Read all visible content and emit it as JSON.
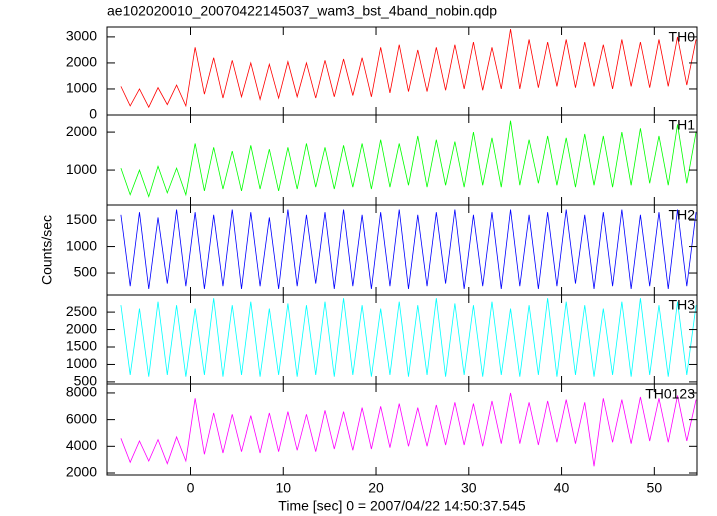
{
  "title": "ae102020010_20070422145037_wam3_bst_4band_nobin.qdp",
  "xlabel": "Time [sec] 0 = 2007/04/22 14:50:37.545",
  "ylabel": "Counts/sec",
  "xlim": [
    -9,
    54.6
  ],
  "xticks": [
    0,
    10,
    20,
    30,
    40,
    50
  ],
  "x": [
    -7.5,
    -6.5,
    -5.5,
    -4.5,
    -3.5,
    -2.5,
    -1.5,
    -0.5,
    0.5,
    1.5,
    2.5,
    3.5,
    4.5,
    5.5,
    6.5,
    7.5,
    8.5,
    9.5,
    10.5,
    11.5,
    12.5,
    13.5,
    14.5,
    15.5,
    16.5,
    17.5,
    18.5,
    19.5,
    20.5,
    21.5,
    22.5,
    23.5,
    24.5,
    25.5,
    26.5,
    27.5,
    28.5,
    29.5,
    30.5,
    31.5,
    32.5,
    33.5,
    34.5,
    35.5,
    36.5,
    37.5,
    38.5,
    39.5,
    40.5,
    41.5,
    42.5,
    43.5,
    44.5,
    45.5,
    46.5,
    47.5,
    48.5,
    49.5,
    50.5,
    51.5,
    52.5,
    53.5,
    54.5
  ],
  "chart_data": [
    {
      "type": "line",
      "ylim": [
        0,
        3380
      ],
      "yticks": [
        0,
        1000,
        2000,
        3000
      ],
      "series": [
        {
          "name": "TH0",
          "color": "#ff0000",
          "values": [
            1100,
            350,
            1000,
            300,
            1050,
            400,
            1150,
            350,
            2600,
            800,
            2200,
            650,
            2100,
            700,
            2000,
            600,
            1950,
            650,
            2050,
            700,
            2000,
            650,
            2100,
            700,
            2150,
            750,
            2200,
            700,
            2600,
            850,
            2700,
            900,
            2500,
            900,
            2600,
            950,
            2700,
            1000,
            2800,
            950,
            2600,
            1000,
            3300,
            1000,
            2900,
            1050,
            2800,
            1100,
            2900,
            1050,
            2800,
            1100,
            2700,
            1000,
            2900,
            1100,
            2800,
            1050,
            2900,
            1100,
            3000,
            1150,
            2900
          ]
        }
      ]
    },
    {
      "type": "line",
      "ylim": [
        80,
        2450
      ],
      "yticks": [
        1000,
        2000
      ],
      "series": [
        {
          "name": "TH1",
          "color": "#00ff00",
          "values": [
            1050,
            350,
            1000,
            300,
            1100,
            400,
            1050,
            350,
            1700,
            450,
            1600,
            500,
            1500,
            450,
            1650,
            500,
            1550,
            450,
            1600,
            500,
            1700,
            550,
            1600,
            500,
            1650,
            550,
            1700,
            500,
            1800,
            550,
            1700,
            600,
            1900,
            550,
            1800,
            600,
            1750,
            550,
            2000,
            600,
            1850,
            550,
            2300,
            600,
            1800,
            650,
            1900,
            600,
            1850,
            550,
            1950,
            600,
            1900,
            550,
            2000,
            600,
            2100,
            650,
            1900,
            600,
            2200,
            650,
            2000
          ]
        }
      ]
    },
    {
      "type": "line",
      "ylim": [
        85,
        1785
      ],
      "yticks": [
        500,
        1000,
        1500
      ],
      "series": [
        {
          "name": "TH2",
          "color": "#0000ff",
          "values": [
            1600,
            250,
            1650,
            200,
            1550,
            300,
            1700,
            250,
            1650,
            200,
            1600,
            250,
            1700,
            200,
            1650,
            250,
            1550,
            200,
            1700,
            250,
            1600,
            300,
            1650,
            200,
            1700,
            250,
            1600,
            200,
            1650,
            250,
            1700,
            200,
            1600,
            250,
            1650,
            300,
            1700,
            200,
            1600,
            250,
            1650,
            200,
            1700,
            250,
            1600,
            200,
            1650,
            250,
            1700,
            300,
            1600,
            200,
            1650,
            250,
            1700,
            200,
            1600,
            250,
            1650,
            200,
            1700,
            250,
            1650
          ]
        }
      ]
    },
    {
      "type": "line",
      "ylim": [
        440,
        2990
      ],
      "yticks": [
        500,
        1000,
        1500,
        2000,
        2500
      ],
      "series": [
        {
          "name": "TH3",
          "color": "#00ffff",
          "values": [
            2700,
            700,
            2600,
            650,
            2800,
            700,
            2700,
            650,
            2600,
            700,
            2900,
            650,
            2700,
            700,
            2800,
            650,
            2600,
            700,
            2750,
            650,
            2700,
            700,
            2800,
            650,
            2900,
            700,
            2700,
            650,
            2600,
            700,
            2800,
            650,
            2700,
            700,
            2900,
            650,
            2750,
            700,
            2700,
            650,
            2800,
            700,
            2600,
            650,
            2700,
            700,
            2900,
            650,
            2800,
            700,
            2700,
            650,
            2600,
            700,
            2800,
            650,
            2900,
            700,
            2700,
            650,
            2800,
            700,
            2700
          ]
        }
      ]
    },
    {
      "type": "line",
      "ylim": [
        1850,
        8670
      ],
      "yticks": [
        2000,
        4000,
        6000,
        8000
      ],
      "series": [
        {
          "name": "TH0123",
          "color": "#ff00ff",
          "values": [
            4600,
            2800,
            4400,
            2900,
            4500,
            2700,
            4700,
            2900,
            7600,
            3400,
            6500,
            3500,
            6400,
            3600,
            6300,
            3500,
            6500,
            3600,
            6600,
            3700,
            6400,
            3600,
            6700,
            3800,
            6600,
            3700,
            6900,
            3800,
            7000,
            3900,
            7200,
            4000,
            6900,
            4000,
            7100,
            4100,
            7300,
            4100,
            7200,
            4000,
            7400,
            4200,
            8000,
            4200,
            7300,
            4100,
            7400,
            4300,
            7500,
            4200,
            7300,
            2500,
            7600,
            4300,
            7500,
            4200,
            7700,
            4400,
            7600,
            4300,
            7800,
            4400,
            7500
          ]
        }
      ]
    }
  ]
}
